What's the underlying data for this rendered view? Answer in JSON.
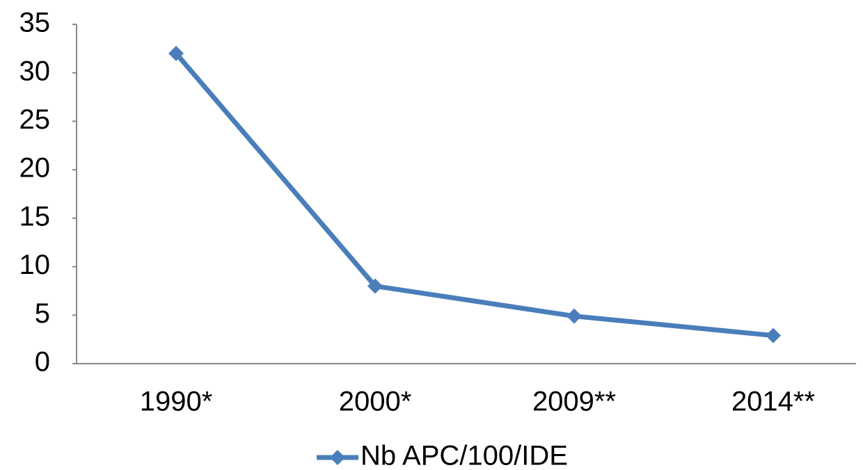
{
  "chart_data": {
    "type": "line",
    "categories": [
      "1990*",
      "2000*",
      "2009**",
      "2014**"
    ],
    "series": [
      {
        "name": "Nb APC/100/IDE",
        "color": "#4a7ebb",
        "values": [
          32,
          8,
          4.9,
          2.9
        ]
      }
    ],
    "ylim": [
      0,
      35
    ],
    "yticks": [
      0,
      5,
      10,
      15,
      20,
      25,
      30,
      35
    ],
    "grid": false,
    "legend": "bottom"
  }
}
